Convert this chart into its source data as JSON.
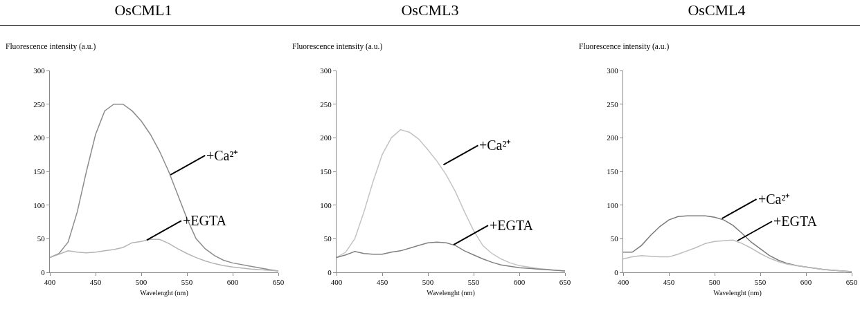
{
  "chart_data": [
    {
      "type": "line",
      "title": "OsCML1",
      "xlabel": "Wavelenght (nm)",
      "ylabel": "Fluorescence intensity (a.u.)",
      "xlim": [
        400,
        650
      ],
      "xticks": [
        400,
        450,
        500,
        550,
        600,
        650
      ],
      "ylim": [
        0,
        300
      ],
      "yticks": [
        0,
        50,
        100,
        150,
        200,
        250,
        300
      ],
      "grid": false,
      "x": [
        400,
        410,
        420,
        430,
        440,
        450,
        460,
        470,
        480,
        490,
        500,
        510,
        520,
        530,
        540,
        550,
        560,
        570,
        580,
        590,
        600,
        620,
        640,
        650
      ],
      "series": [
        {
          "color": "#8c8c8c",
          "values": [
            22,
            28,
            45,
            90,
            150,
            205,
            240,
            250,
            250,
            240,
            225,
            205,
            180,
            150,
            115,
            80,
            50,
            35,
            25,
            18,
            14,
            9,
            4,
            2
          ]
        },
        {
          "color": "#b4b4b4",
          "values": [
            22,
            27,
            32,
            30,
            29,
            30,
            32,
            34,
            37,
            44,
            46,
            49,
            49,
            43,
            35,
            28,
            22,
            17,
            13,
            10,
            8,
            5,
            3,
            2
          ]
        }
      ],
      "annotations": [
        {
          "text": "+Ca²⁺",
          "x": 532,
          "y": 145
        },
        {
          "text": "+EGTA",
          "x": 506,
          "y": 48
        }
      ]
    },
    {
      "type": "line",
      "title": "OsCML3",
      "xlabel": "Wavelenght (nm)",
      "ylabel": "Fluorescence intensity (a.u.)",
      "xlim": [
        400,
        650
      ],
      "xticks": [
        400,
        450,
        500,
        550,
        600,
        650
      ],
      "ylim": [
        0,
        300
      ],
      "yticks": [
        0,
        50,
        100,
        150,
        200,
        250,
        300
      ],
      "grid": false,
      "x": [
        400,
        410,
        420,
        430,
        440,
        450,
        460,
        470,
        480,
        490,
        500,
        510,
        520,
        530,
        540,
        550,
        560,
        570,
        580,
        590,
        600,
        620,
        640,
        650
      ],
      "series": [
        {
          "color": "#c4c4c4",
          "values": [
            22,
            30,
            50,
            90,
            135,
            175,
            200,
            212,
            208,
            198,
            182,
            165,
            145,
            120,
            90,
            62,
            40,
            28,
            20,
            14,
            10,
            6,
            3,
            2
          ]
        },
        {
          "color": "#808080",
          "values": [
            22,
            26,
            31,
            28,
            27,
            27,
            30,
            32,
            36,
            40,
            44,
            45,
            44,
            40,
            32,
            26,
            20,
            15,
            11,
            9,
            7,
            5,
            3,
            2
          ]
        }
      ],
      "annotations": [
        {
          "text": "+Ca²⁺",
          "x": 517,
          "y": 160
        },
        {
          "text": "+EGTA",
          "x": 528,
          "y": 41
        }
      ]
    },
    {
      "type": "line",
      "title": "OsCML4",
      "xlabel": "Wavelenght (nm)",
      "ylabel": "Fluorescence intensity (a.u.)",
      "xlim": [
        400,
        650
      ],
      "xticks": [
        400,
        450,
        500,
        550,
        600,
        650
      ],
      "ylim": [
        0,
        300
      ],
      "yticks": [
        0,
        50,
        100,
        150,
        200,
        250,
        300
      ],
      "grid": false,
      "x": [
        400,
        410,
        420,
        430,
        440,
        450,
        460,
        470,
        480,
        490,
        500,
        510,
        520,
        530,
        540,
        550,
        560,
        570,
        580,
        590,
        600,
        620,
        640,
        650
      ],
      "series": [
        {
          "color": "#7a7a7a",
          "values": [
            30,
            30,
            40,
            55,
            68,
            78,
            83,
            84,
            84,
            84,
            82,
            78,
            70,
            58,
            45,
            35,
            25,
            18,
            13,
            10,
            8,
            4,
            2,
            1
          ]
        },
        {
          "color": "#bcbcbc",
          "values": [
            20,
            23,
            25,
            24,
            23,
            23,
            27,
            32,
            37,
            43,
            46,
            47,
            48,
            43,
            36,
            28,
            21,
            16,
            12,
            10,
            8,
            4,
            2,
            1
          ]
        }
      ],
      "annotations": [
        {
          "text": "+Ca²⁺",
          "x": 508,
          "y": 80
        },
        {
          "text": "+EGTA",
          "x": 525,
          "y": 47
        }
      ]
    }
  ]
}
